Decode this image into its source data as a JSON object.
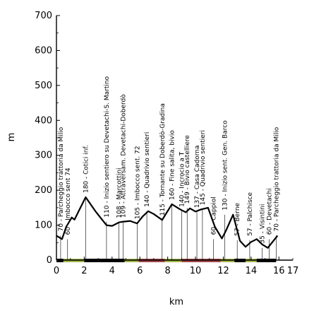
{
  "chart_data": {
    "type": "line",
    "xlabel": "km",
    "ylabel": "m",
    "xlim": [
      0,
      17
    ],
    "ylim": [
      0,
      700
    ],
    "x_ticks": [
      "0",
      "2",
      "4",
      "6",
      "8",
      "10",
      "12",
      "14",
      "16"
    ],
    "x_tick_values": [
      0,
      2,
      4,
      6,
      8,
      10,
      12,
      14,
      16
    ],
    "x_minor_tick_values": [
      1,
      3,
      5,
      7,
      9,
      11,
      13,
      15,
      17
    ],
    "x_edge_label": "17",
    "y_ticks": [
      "0",
      "100",
      "200",
      "300",
      "400",
      "500",
      "600",
      "700"
    ],
    "y_tick_values": [
      0,
      100,
      200,
      300,
      400,
      500,
      600,
      700
    ],
    "profile": {
      "x": [
        0,
        0.4,
        0.7,
        1.1,
        1.3,
        1.6,
        2.1,
        2.8,
        3.6,
        4.0,
        4.5,
        4.8,
        5.3,
        5.8,
        6.2,
        6.6,
        7.0,
        7.6,
        8.3,
        8.9,
        9.3,
        9.6,
        10.0,
        10.4,
        10.9,
        11.4,
        11.9,
        12.2,
        12.7,
        13.2,
        13.6,
        14.0,
        14.4,
        14.8,
        15.2,
        15.6,
        15.9
      ],
      "y": [
        70,
        60,
        95,
        122,
        116,
        140,
        180,
        140,
        100,
        98,
        108,
        110,
        112,
        105,
        125,
        140,
        132,
        115,
        160,
        145,
        137,
        148,
        139,
        145,
        150,
        95,
        62,
        85,
        130,
        55,
        38,
        52,
        60,
        45,
        35,
        55,
        70
      ]
    },
    "waypoints": [
      {
        "x": 0.3,
        "y": 70,
        "label": "70 - Parcheggio trattoria da Milio"
      },
      {
        "x": 0.8,
        "y": 60,
        "label": "60 - Imbocco sent 74"
      },
      {
        "x": 2.1,
        "y": 180,
        "label": "180 - Cotici inf."
      },
      {
        "x": 3.6,
        "y": 110,
        "label": "110 - Inizio sentiero su Devetachi-S. Martino"
      },
      {
        "x": 4.5,
        "y": 108,
        "label": "108 - Marcottini"
      },
      {
        "x": 4.8,
        "y": 109,
        "label": "109 - Attraversam. Devetachi-Doberdò"
      },
      {
        "x": 5.8,
        "y": 105,
        "label": "105 - Imbocco sent. 72"
      },
      {
        "x": 6.5,
        "y": 140,
        "label": "140 - Quadrivio sentieri"
      },
      {
        "x": 7.6,
        "y": 115,
        "label": "115 - Tornante su Doberdò-Gradina"
      },
      {
        "x": 8.3,
        "y": 160,
        "label": "160 - Fine salita, bivio"
      },
      {
        "x": 9.0,
        "y": 140,
        "label": "140 - Incrocio a T"
      },
      {
        "x": 9.4,
        "y": 149,
        "label": "149 - Bivio castelliere"
      },
      {
        "x": 10.1,
        "y": 137,
        "label": "137 - Casa Cadorna"
      },
      {
        "x": 10.5,
        "y": 145,
        "label": "145 - Quadrivio sentieri"
      },
      {
        "x": 11.3,
        "y": 60,
        "label": "60 - Cappiol"
      },
      {
        "x": 12.1,
        "y": 130,
        "label": "130 - Inizio sent. Gen. Barco"
      },
      {
        "x": 13.0,
        "y": 57,
        "label": "57 - Berne"
      },
      {
        "x": 13.9,
        "y": 57,
        "label": "57 - Palchisce"
      },
      {
        "x": 14.8,
        "y": 35,
        "label": "35 - Visintini"
      },
      {
        "x": 15.3,
        "y": 60,
        "label": "60 - Devetachi"
      },
      {
        "x": 15.8,
        "y": 70,
        "label": "70 - Parcheggio trattoria da Milio"
      }
    ],
    "surface_segments": [
      {
        "x0": 0.0,
        "x1": 0.5,
        "color": "#000000"
      },
      {
        "x0": 0.5,
        "x1": 2.0,
        "color": "#a3b64a"
      },
      {
        "x0": 2.0,
        "x1": 3.0,
        "color": "#000000"
      },
      {
        "x0": 3.0,
        "x1": 4.9,
        "color": "#000000"
      },
      {
        "x0": 4.9,
        "x1": 5.9,
        "color": "#a3b64a"
      },
      {
        "x0": 5.9,
        "x1": 7.8,
        "color": "#a3474a"
      },
      {
        "x0": 7.8,
        "x1": 9.0,
        "color": "#a3b64a"
      },
      {
        "x0": 9.0,
        "x1": 11.8,
        "color": "#a3474a"
      },
      {
        "x0": 11.8,
        "x1": 12.8,
        "color": "#a3b64a"
      },
      {
        "x0": 12.8,
        "x1": 13.6,
        "color": "#000000"
      },
      {
        "x0": 13.6,
        "x1": 14.4,
        "color": "#a3b64a"
      },
      {
        "x0": 14.4,
        "x1": 15.8,
        "color": "#000000"
      }
    ]
  }
}
